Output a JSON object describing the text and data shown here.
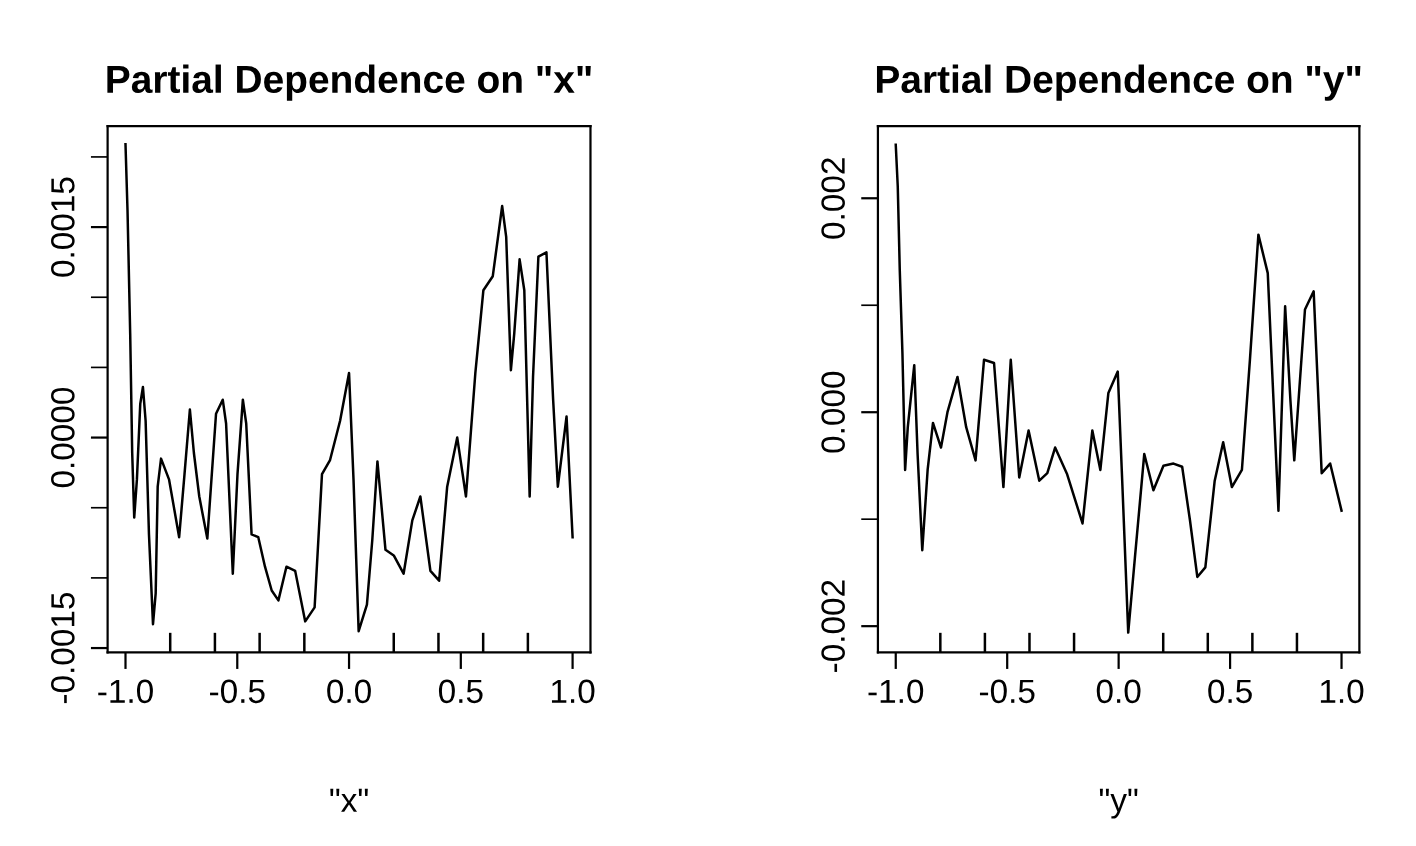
{
  "chart_data": [
    {
      "type": "line",
      "title": "Partial Dependence on \"x\"",
      "xlabel": "\"x\"",
      "x": [
        -1,
        -0.991,
        -0.979,
        -0.97,
        -0.961,
        -0.949,
        -0.934,
        -0.922,
        -0.91,
        -0.895,
        -0.877,
        -0.865,
        -0.856,
        -0.841,
        -0.805,
        -0.76,
        -0.736,
        -0.712,
        -0.694,
        -0.67,
        -0.634,
        -0.595,
        -0.565,
        -0.55,
        -0.52,
        -0.499,
        -0.475,
        -0.46,
        -0.436,
        -0.406,
        -0.376,
        -0.346,
        -0.316,
        -0.28,
        -0.241,
        -0.196,
        -0.154,
        -0.121,
        -0.085,
        -0.04,
        0,
        0.02,
        0.043,
        0.08,
        0.104,
        0.127,
        0.163,
        0.2,
        0.244,
        0.283,
        0.319,
        0.364,
        0.403,
        0.439,
        0.484,
        0.523,
        0.565,
        0.601,
        0.643,
        0.685,
        0.703,
        0.724,
        0.739,
        0.763,
        0.784,
        0.808,
        0.823,
        0.847,
        0.883,
        0.913,
        0.934,
        0.973,
        1
      ],
      "series": [
        {
          "color": "#000000",
          "values": [
            0.00209,
            0.00162,
            0.00074,
            -0.00011,
            -0.00057,
            -0.0003,
            0.00024,
            0.00036,
            0.00012,
            -0.00069,
            -0.00133,
            -0.00111,
            -0.00035,
            -0.00015,
            -0.0003,
            -0.00071,
            -0.00026,
            0.0002,
            -0.00011,
            -0.00042,
            -0.00072,
            0.00017,
            0.00027,
            0.0001,
            -0.00097,
            -0.00026,
            0.00027,
            0.0001,
            -0.00069,
            -0.00071,
            -0.00092,
            -0.00109,
            -0.00116,
            -0.00092,
            -0.00095,
            -0.00131,
            -0.00121,
            -0.00026,
            -0.00016,
            0.00012,
            0.00046,
            -0.0003,
            -0.00138,
            -0.00119,
            -0.00073,
            -0.00017,
            -0.0008,
            -0.00084,
            -0.00097,
            -0.00059,
            -0.00042,
            -0.00095,
            -0.00102,
            -0.00035,
            0,
            -0.00042,
            0.00046,
            0.00105,
            0.00115,
            0.00165,
            0.00143,
            0.00048,
            0.00074,
            0.00127,
            0.00105,
            -0.00042,
            0.00043,
            0.00129,
            0.00132,
            0.00027,
            -0.00035,
            0.00015,
            -0.00071
          ]
        }
      ],
      "xlim": [
        -1.08,
        1.08
      ],
      "ylim": [
        -0.00153,
        0.00222
      ],
      "xticks": [
        {
          "value": -1,
          "label": "-1.0"
        },
        {
          "value": -0.5,
          "label": "-0.5"
        },
        {
          "value": 0,
          "label": "0.0"
        },
        {
          "value": 0.5,
          "label": "0.5"
        },
        {
          "value": 1,
          "label": "1.0"
        },
        {
          "value": -0.8,
          "label": null
        },
        {
          "value": -0.6,
          "label": null
        },
        {
          "value": -0.4,
          "label": null
        },
        {
          "value": -0.2,
          "label": null
        },
        {
          "value": 0.2,
          "label": null
        },
        {
          "value": 0.4,
          "label": null
        },
        {
          "value": 0.6,
          "label": null
        },
        {
          "value": 0.8,
          "label": null
        }
      ],
      "yticks": [
        {
          "value": -0.0015,
          "label": "-0.0015"
        },
        {
          "value": -0.001,
          "label": null
        },
        {
          "value": -0.0005,
          "label": null
        },
        {
          "value": 0,
          "label": "0.0000"
        },
        {
          "value": 0.0005,
          "label": null
        },
        {
          "value": 0.001,
          "label": null
        },
        {
          "value": 0.0015,
          "label": "0.0015"
        },
        {
          "value": 0.002,
          "label": null
        }
      ],
      "grid": false,
      "legend": false,
      "line_style": "solid",
      "marker": "none"
    },
    {
      "type": "line",
      "title": "Partial Dependence on \"y\"",
      "xlabel": "\"y\"",
      "x": [
        -1,
        -0.991,
        -0.982,
        -0.97,
        -0.958,
        -0.946,
        -0.917,
        -0.902,
        -0.881,
        -0.857,
        -0.833,
        -0.797,
        -0.768,
        -0.723,
        -0.684,
        -0.642,
        -0.604,
        -0.559,
        -0.517,
        -0.484,
        -0.446,
        -0.404,
        -0.356,
        -0.32,
        -0.285,
        -0.231,
        -0.162,
        -0.118,
        -0.082,
        -0.046,
        -0.004,
        0.016,
        0.043,
        0.073,
        0.115,
        0.156,
        0.201,
        0.246,
        0.285,
        0.32,
        0.353,
        0.389,
        0.431,
        0.469,
        0.508,
        0.553,
        0.589,
        0.627,
        0.669,
        0.717,
        0.747,
        0.771,
        0.788,
        0.836,
        0.875,
        0.911,
        0.949,
        1
      ],
      "series": [
        {
          "color": "#000000",
          "values": [
            0.0025,
            0.00211,
            0.00133,
            0.00055,
            -0.00054,
            -0.00014,
            0.00044,
            -0.00039,
            -0.00129,
            -0.00054,
            -0.0001,
            -0.00033,
            0,
            0.00033,
            -0.00014,
            -0.00045,
            0.00049,
            0.00046,
            -0.0007,
            0.00049,
            -0.00061,
            -0.00017,
            -0.00064,
            -0.00057,
            -0.00033,
            -0.00058,
            -0.00104,
            -0.00017,
            -0.00054,
            0.00018,
            0.00038,
            -0.00064,
            -0.00206,
            -0.00136,
            -0.00039,
            -0.00073,
            -0.0005,
            -0.00048,
            -0.00051,
            -0.00101,
            -0.00154,
            -0.00145,
            -0.00064,
            -0.00028,
            -0.0007,
            -0.00054,
            0.00049,
            0.00166,
            0.0013,
            -0.00092,
            0.00099,
            0.0001,
            -0.00045,
            0.00096,
            0.00113,
            -0.00057,
            -0.00048,
            -0.00092
          ]
        }
      ],
      "xlim": [
        -1.08,
        1.08
      ],
      "ylim": [
        -0.002244,
        0.002675
      ],
      "xticks": [
        {
          "value": -1,
          "label": "-1.0"
        },
        {
          "value": -0.5,
          "label": "-0.5"
        },
        {
          "value": 0,
          "label": "0.0"
        },
        {
          "value": 0.5,
          "label": "0.5"
        },
        {
          "value": 1,
          "label": "1.0"
        },
        {
          "value": -0.8,
          "label": null
        },
        {
          "value": -0.6,
          "label": null
        },
        {
          "value": -0.4,
          "label": null
        },
        {
          "value": -0.2,
          "label": null
        },
        {
          "value": 0.2,
          "label": null
        },
        {
          "value": 0.4,
          "label": null
        },
        {
          "value": 0.6,
          "label": null
        },
        {
          "value": 0.8,
          "label": null
        }
      ],
      "yticks": [
        {
          "value": -0.002,
          "label": "-0.002"
        },
        {
          "value": -0.001,
          "label": null
        },
        {
          "value": 0,
          "label": "0.000"
        },
        {
          "value": 0.001,
          "label": null
        },
        {
          "value": 0.002,
          "label": "0.002"
        }
      ],
      "grid": false,
      "legend": false,
      "line_style": "solid",
      "marker": "none"
    }
  ]
}
